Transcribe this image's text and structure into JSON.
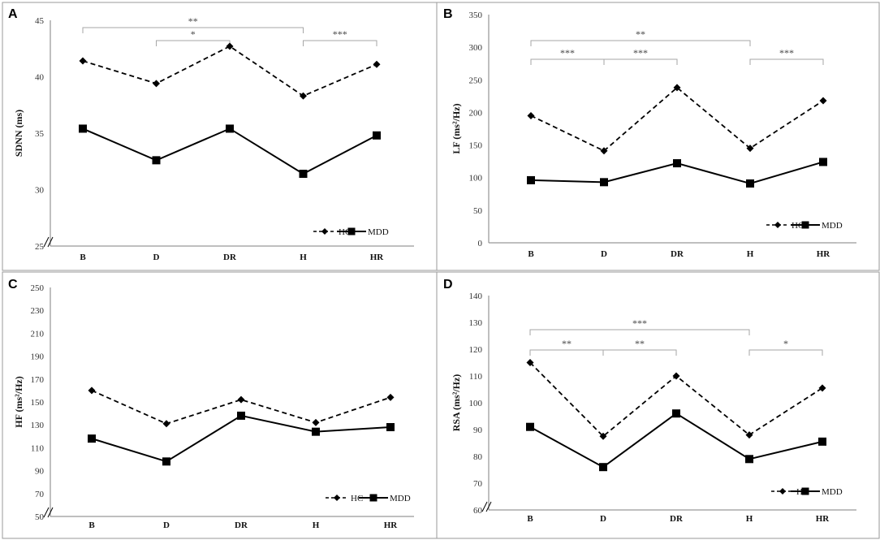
{
  "chart_data": [
    {
      "panel": "A",
      "type": "line",
      "categories": [
        "B",
        "D",
        "DR",
        "H",
        "HR"
      ],
      "ylabel": "SDNN (ms)",
      "ylim": [
        25,
        45
      ],
      "yticks": [
        "25",
        "30",
        "35",
        "40",
        "45"
      ],
      "series": [
        {
          "name": "HC",
          "style": "dashed",
          "marker": "diamond",
          "values": [
            41.4,
            39.4,
            42.7,
            38.3,
            41.1
          ]
        },
        {
          "name": "MDD",
          "style": "solid",
          "marker": "square",
          "values": [
            35.4,
            32.6,
            35.4,
            31.4,
            34.8
          ]
        }
      ],
      "significance": [
        {
          "from": 0,
          "to": 3,
          "level": 0,
          "label": "**"
        },
        {
          "from": 1,
          "to": 2,
          "level": 1,
          "label": "*"
        },
        {
          "from": 3,
          "to": 4,
          "level": 1,
          "label": "***"
        }
      ]
    },
    {
      "panel": "B",
      "type": "line",
      "categories": [
        "B",
        "D",
        "DR",
        "H",
        "HR"
      ],
      "ylabel": "LF (ms²/Hz)",
      "ylim": [
        0,
        350
      ],
      "yticks": [
        "0",
        "50",
        "100",
        "150",
        "200",
        "250",
        "300",
        "350"
      ],
      "series": [
        {
          "name": "HC",
          "style": "dashed",
          "marker": "diamond",
          "values": [
            195,
            141,
            238,
            145,
            218
          ]
        },
        {
          "name": "MDD",
          "style": "solid",
          "marker": "square",
          "values": [
            96,
            93,
            122,
            91,
            124
          ]
        }
      ],
      "significance": [
        {
          "from": 0,
          "to": 3,
          "level": 0,
          "label": "**"
        },
        {
          "from": 0,
          "to": 1,
          "level": 1,
          "label": "***"
        },
        {
          "from": 1,
          "to": 2,
          "level": 1,
          "label": "***"
        },
        {
          "from": 3,
          "to": 4,
          "level": 1,
          "label": "***"
        }
      ]
    },
    {
      "panel": "C",
      "type": "line",
      "categories": [
        "B",
        "D",
        "DR",
        "H",
        "HR"
      ],
      "ylabel": "HF (ms²/Hz)",
      "ylim": [
        50,
        250
      ],
      "yticks": [
        "50",
        "70",
        "90",
        "110",
        "130",
        "150",
        "170",
        "190",
        "210",
        "230",
        "250"
      ],
      "series": [
        {
          "name": "HC",
          "style": "dashed",
          "marker": "diamond",
          "values": [
            160,
            131,
            152,
            132,
            154
          ]
        },
        {
          "name": "MDD",
          "style": "solid",
          "marker": "square",
          "values": [
            118,
            98,
            138,
            124,
            128
          ]
        }
      ],
      "significance": []
    },
    {
      "panel": "D",
      "type": "line",
      "categories": [
        "B",
        "D",
        "DR",
        "H",
        "HR"
      ],
      "ylabel": "RSA (ms²/Hz)",
      "ylim": [
        60,
        140
      ],
      "yticks": [
        "60",
        "70",
        "80",
        "90",
        "100",
        "110",
        "120",
        "130",
        "140"
      ],
      "series": [
        {
          "name": "HC",
          "style": "dashed",
          "marker": "diamond",
          "values": [
            115,
            87.5,
            110,
            88,
            105.5
          ]
        },
        {
          "name": "MDD",
          "style": "solid",
          "marker": "square",
          "values": [
            91,
            76,
            96,
            79,
            85.5
          ]
        }
      ],
      "significance": [
        {
          "from": 0,
          "to": 3,
          "level": 0,
          "label": "***"
        },
        {
          "from": 0,
          "to": 1,
          "level": 1,
          "label": "**"
        },
        {
          "from": 1,
          "to": 2,
          "level": 1,
          "label": "**"
        },
        {
          "from": 3,
          "to": 4,
          "level": 1,
          "label": "*"
        }
      ]
    }
  ]
}
